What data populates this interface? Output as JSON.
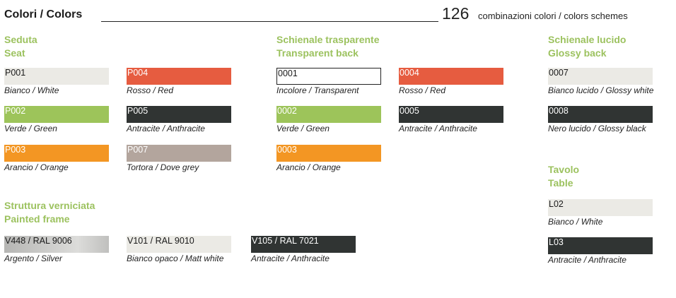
{
  "header": {
    "title": "Colori / Colors",
    "count": "126",
    "count_text": "combinazioni colori / colors schemes"
  },
  "seat": {
    "heading1": "Seduta",
    "heading2": "Seat",
    "items": [
      {
        "code": "P001",
        "label": "Bianco / White",
        "color": "#ebeae5"
      },
      {
        "code": "P004",
        "label": "Rosso / Red",
        "color": "#e65c40"
      },
      {
        "code": "P002",
        "label": "Verde / Green",
        "color": "#9dc45a"
      },
      {
        "code": "P005",
        "label": "Antracite / Anthracite",
        "color": "#303433"
      },
      {
        "code": "P003",
        "label": "Arancio / Orange",
        "color": "#f39623"
      },
      {
        "code": "P007",
        "label": "Tortora / Dove grey",
        "color": "#b3a59d"
      }
    ]
  },
  "transparent": {
    "heading1": "Schienale trasparente",
    "heading2": "Transparent back",
    "items": [
      {
        "code": "0001",
        "label": "Incolore / Transparent",
        "color": "#ffffff"
      },
      {
        "code": "0004",
        "label": "Rosso / Red",
        "color": "#e65c40"
      },
      {
        "code": "0002",
        "label": "Verde / Green",
        "color": "#9dc45a"
      },
      {
        "code": "0005",
        "label": "Antracite / Anthracite",
        "color": "#303433"
      },
      {
        "code": "0003",
        "label": "Arancio / Orange",
        "color": "#f39623"
      }
    ]
  },
  "glossy": {
    "heading1": "Schienale lucido",
    "heading2": "Glossy back",
    "items": [
      {
        "code": "0007",
        "label": "Bianco lucido / Glossy white",
        "color": "#ebeae5"
      },
      {
        "code": "0008",
        "label": "Nero lucido / Glossy black",
        "color": "#303433"
      }
    ]
  },
  "table": {
    "heading1": "Tavolo",
    "heading2": "Table",
    "items": [
      {
        "code": "L02",
        "label": "Bianco / White",
        "color": "#ebeae5"
      },
      {
        "code": "L03",
        "label": "Antracite / Anthracite",
        "color": "#303433"
      }
    ]
  },
  "frame": {
    "heading1": "Struttura verniciata",
    "heading2": "Painted frame",
    "items": [
      {
        "code": "V448 / RAL 9006",
        "label": "Argento / Silver",
        "color": "#c4c4c2"
      },
      {
        "code": "V101 / RAL 9010",
        "label": "Bianco opaco / Matt white",
        "color": "#ebeae5"
      },
      {
        "code": "V105 / RAL 7021",
        "label": "Antracite / Anthracite",
        "color": "#303433"
      }
    ]
  }
}
